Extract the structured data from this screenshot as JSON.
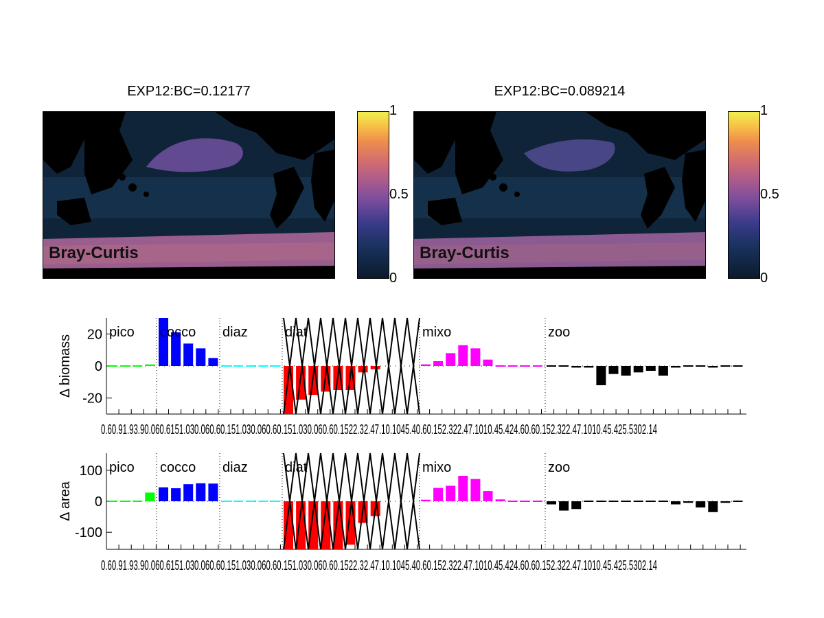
{
  "maps": [
    {
      "title": "EXP12:BC=0.12177",
      "label": "Bray-Curtis"
    },
    {
      "title": "EXP12:BC=0.089214",
      "label": "Bray-Curtis"
    }
  ],
  "colorbar": {
    "ticks": [
      "1",
      "0.5",
      "0"
    ],
    "range": [
      0,
      1
    ]
  },
  "group_colors": {
    "pico": "#00ff00",
    "cocco": "#0000ff",
    "diaz": "#00ffff",
    "diat": "#ff0000",
    "mixo": "#ff00ff",
    "zoo": "#000000"
  },
  "chart_data": [
    {
      "type": "bar",
      "ylabel": "Δ biomass",
      "ylim": [
        -30,
        30
      ],
      "yticks": [
        20,
        0,
        -20
      ],
      "groups": [
        "pico",
        "cocco",
        "diaz",
        "diat",
        "mixo",
        "zoo"
      ],
      "xticklabels": "0.60.91.93.90.060.6151.030.060.60.151.030.060.60.151.030.060.60.1522.32.47.10.1045.40.60.152.322.47.1010.45.424.60.60.152.322.47.1010.45.425.5302.14",
      "series": [
        {
          "name": "pico",
          "values": [
            0,
            0,
            0,
            1
          ]
        },
        {
          "name": "cocco",
          "values": [
            30,
            21,
            14,
            11,
            5
          ]
        },
        {
          "name": "diaz",
          "values": [
            0,
            0,
            0,
            0,
            0
          ]
        },
        {
          "name": "diat",
          "values": [
            -35,
            -21,
            -18,
            -16,
            -15,
            -15,
            -4,
            -2
          ]
        },
        {
          "name": "mixo",
          "values": [
            1,
            3,
            8,
            13,
            11,
            4,
            0,
            0,
            0,
            0
          ]
        },
        {
          "name": "zoo",
          "values": [
            0,
            0,
            -1,
            -1,
            -12,
            -5,
            -6,
            -4,
            -3,
            -6,
            -1,
            0,
            0,
            -1,
            0,
            0
          ]
        }
      ]
    },
    {
      "type": "bar",
      "ylabel": "Δ area",
      "ylim": [
        -155,
        155
      ],
      "yticks": [
        100,
        0,
        -100
      ],
      "groups": [
        "pico",
        "cocco",
        "diaz",
        "diat",
        "mixo",
        "zoo"
      ],
      "xticklabels": "0.60.91.93.90.060.6151.030.060.60.151.030.060.60.151.030.060.60.1522.32.47.10.1045.40.60.152.322.47.1010.45.424.60.60.152.322.47.1010.45.425.5302.14",
      "series": [
        {
          "name": "pico",
          "values": [
            0,
            0,
            0,
            28
          ]
        },
        {
          "name": "cocco",
          "values": [
            45,
            42,
            55,
            58,
            57
          ]
        },
        {
          "name": "diaz",
          "values": [
            0,
            0,
            0,
            0,
            0
          ]
        },
        {
          "name": "diat",
          "values": [
            -160,
            -155,
            -155,
            -155,
            -155,
            -140,
            -70,
            -48
          ]
        },
        {
          "name": "mixo",
          "values": [
            5,
            43,
            50,
            82,
            72,
            33,
            6,
            0,
            0,
            0
          ]
        },
        {
          "name": "zoo",
          "values": [
            -10,
            -30,
            -25,
            4,
            0,
            0,
            0,
            0,
            0,
            0,
            -10,
            -5,
            -20,
            -35,
            -5,
            2
          ]
        }
      ]
    }
  ]
}
